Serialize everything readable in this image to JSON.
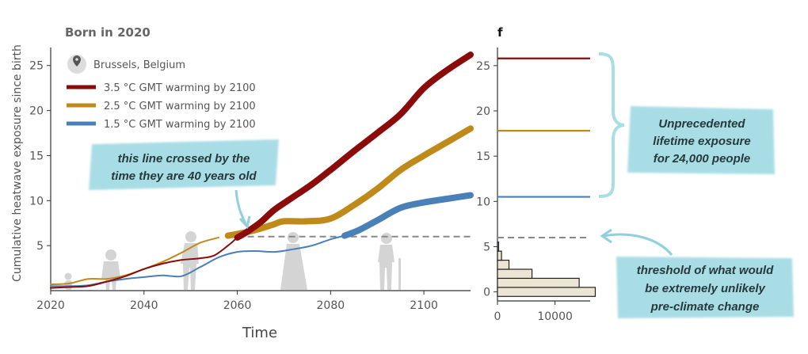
{
  "chart_data": [
    {
      "type": "line",
      "title": "Born in 2020",
      "location": "Brussels, Belgium",
      "xlabel": "Time",
      "ylabel": "Cumulative heatwave exposure since birth",
      "xlim": [
        2020,
        2110
      ],
      "ylim": [
        0,
        27
      ],
      "xticks": [
        "2020",
        "2040",
        "2060",
        "2080",
        "2100"
      ],
      "yticks": [
        "5",
        "10",
        "15",
        "20",
        "25"
      ],
      "threshold": 6,
      "legend_position": "top-left",
      "series": [
        {
          "name": "3.5 °C GMT warming by 2100",
          "color": "#8b0a0a",
          "bold_from": 2060,
          "x": [
            2020,
            2024,
            2028,
            2032,
            2036,
            2040,
            2044,
            2048,
            2052,
            2055,
            2058,
            2060,
            2062,
            2065,
            2068,
            2072,
            2076,
            2080,
            2085,
            2090,
            2095,
            2100,
            2105,
            2110
          ],
          "y": [
            0.3,
            0.4,
            0.5,
            1.0,
            1.6,
            2.4,
            3.0,
            3.4,
            3.6,
            3.9,
            5.0,
            5.9,
            6.5,
            7.6,
            9.0,
            10.4,
            11.8,
            13.4,
            15.5,
            17.5,
            19.6,
            22.5,
            24.5,
            26.2
          ]
        },
        {
          "name": "2.5 °C GMT warming by 2100",
          "color": "#c08a1a",
          "bold_from": 2057,
          "x": [
            2020,
            2024,
            2028,
            2032,
            2036,
            2040,
            2044,
            2048,
            2052,
            2056,
            2058,
            2060,
            2062,
            2065,
            2068,
            2070,
            2075,
            2080,
            2085,
            2090,
            2095,
            2100,
            2105,
            2110
          ],
          "y": [
            0.7,
            0.8,
            1.3,
            1.3,
            1.7,
            2.4,
            3.2,
            4.2,
            5.3,
            5.9,
            6.1,
            6.3,
            6.5,
            6.9,
            7.4,
            7.7,
            7.7,
            8.0,
            9.5,
            11.3,
            13.4,
            15.0,
            16.5,
            18.0
          ]
        },
        {
          "name": "1.5 °C GMT warming by 2100",
          "color": "#4a80b8",
          "bold_from": 2083,
          "x": [
            2020,
            2024,
            2028,
            2032,
            2036,
            2040,
            2044,
            2048,
            2052,
            2056,
            2060,
            2064,
            2068,
            2072,
            2076,
            2080,
            2083,
            2086,
            2090,
            2095,
            2100,
            2105,
            2110
          ],
          "y": [
            0.5,
            0.5,
            0.6,
            1.0,
            1.3,
            1.5,
            1.7,
            1.6,
            2.6,
            3.7,
            4.3,
            4.4,
            4.3,
            4.6,
            5.0,
            5.7,
            6.1,
            6.7,
            7.8,
            9.2,
            9.8,
            10.2,
            10.6
          ]
        }
      ]
    },
    {
      "type": "bar",
      "orientation": "horizontal",
      "panel_label": "f",
      "xticks": [
        "0",
        "10000"
      ],
      "yticks": [
        "0",
        "5",
        "10",
        "15",
        "20",
        "25"
      ],
      "xlim": [
        0,
        19000
      ],
      "ylim": [
        -1,
        27
      ],
      "bins": [
        {
          "y_from": -0.5,
          "y_to": 0.5,
          "value": 17000
        },
        {
          "y_from": 0.5,
          "y_to": 1.5,
          "value": 14200
        },
        {
          "y_from": 1.5,
          "y_to": 2.5,
          "value": 6000
        },
        {
          "y_from": 2.5,
          "y_to": 3.5,
          "value": 2000
        },
        {
          "y_from": 3.5,
          "y_to": 4.5,
          "value": 700
        },
        {
          "y_from": 4.5,
          "y_to": 5.5,
          "value": 200
        }
      ],
      "reference_lines": [
        {
          "y": 25.8,
          "color": "#8b0a0a"
        },
        {
          "y": 17.8,
          "color": "#c08a1a"
        },
        {
          "y": 10.5,
          "color": "#4a80b8"
        }
      ],
      "threshold": 6
    }
  ],
  "annotations": {
    "crossed": [
      "this line crossed by the",
      "time they are 40 years old"
    ],
    "unprecedented": [
      "Unprecedented",
      "lifetime exposure",
      "for 24,000 people"
    ],
    "threshold": [
      "threshold of what would",
      "be extremely unlikely",
      "pre-climate change"
    ]
  },
  "colors": {
    "callout_bg": "#a9dde6",
    "dashed_line": "#888888",
    "silhouettes": "#d2d2d2",
    "bars_fill": "#ece5d4",
    "axis": "#333333"
  }
}
